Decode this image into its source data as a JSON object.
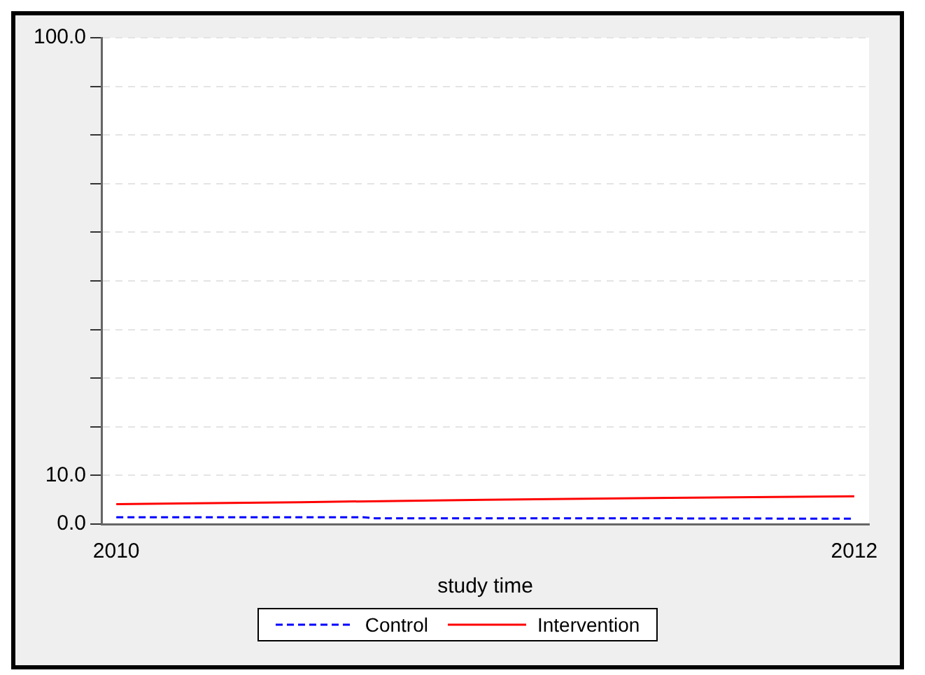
{
  "chart_data": {
    "type": "line",
    "xlabel": "study time",
    "xlim": [
      2009.96,
      2012.04
    ],
    "xticks": [
      2010,
      2012
    ],
    "ylim": [
      0,
      100
    ],
    "yticks": [
      {
        "value": 0,
        "label": "0.0"
      },
      {
        "value": 10,
        "label": "10.0"
      },
      {
        "value": 20,
        "label": null
      },
      {
        "value": 30,
        "label": null
      },
      {
        "value": 40,
        "label": null
      },
      {
        "value": 50,
        "label": null
      },
      {
        "value": 60,
        "label": null
      },
      {
        "value": 70,
        "label": null
      },
      {
        "value": 80,
        "label": null
      },
      {
        "value": 90,
        "label": null
      },
      {
        "value": 100,
        "label": "100.0"
      }
    ],
    "grid": "y",
    "legend": "bottom",
    "series": [
      {
        "name": "Control",
        "color": "#0000ff",
        "line_style": "dashed",
        "x": [
          2010,
          2010.5,
          2010.67,
          2010.7,
          2011.3,
          2012
        ],
        "values": [
          1.4,
          1.4,
          1.4,
          1.2,
          1.2,
          1.1
        ]
      },
      {
        "name": "Intervention",
        "color": "#ff0000",
        "line_style": "solid",
        "x": [
          2010,
          2010.5,
          2011,
          2011.5,
          2012
        ],
        "values": [
          4.1,
          4.5,
          5.0,
          5.4,
          5.7
        ]
      }
    ]
  }
}
